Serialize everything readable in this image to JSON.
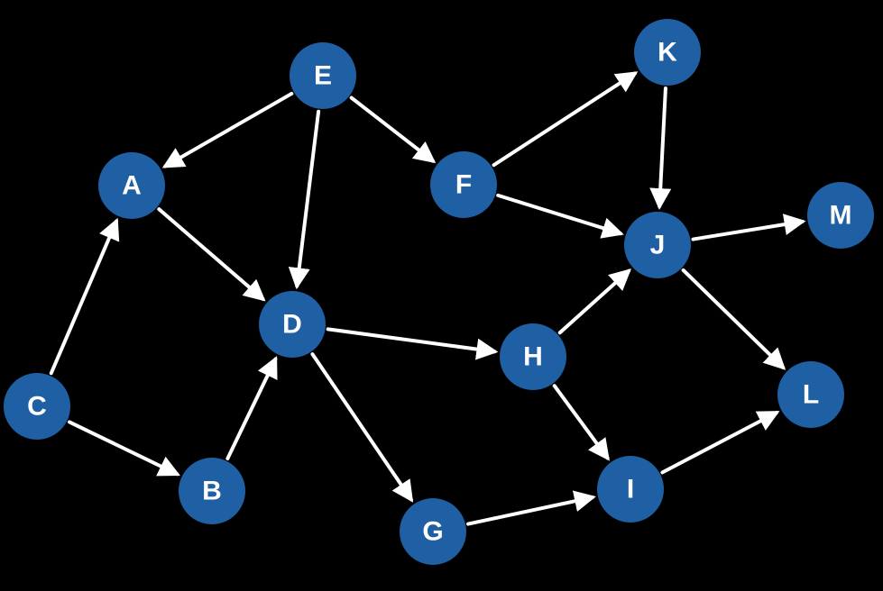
{
  "colors": {
    "background": "#000000",
    "node_fill": "#1f5fa3",
    "edge": "#ffffff",
    "label": "#ffffff"
  },
  "nodes": [
    {
      "id": "E",
      "label": "E"
    },
    {
      "id": "A",
      "label": "A"
    },
    {
      "id": "F",
      "label": "F"
    },
    {
      "id": "K",
      "label": "K"
    },
    {
      "id": "J",
      "label": "J"
    },
    {
      "id": "M",
      "label": "M"
    },
    {
      "id": "D",
      "label": "D"
    },
    {
      "id": "H",
      "label": "H"
    },
    {
      "id": "C",
      "label": "C"
    },
    {
      "id": "B",
      "label": "B"
    },
    {
      "id": "L",
      "label": "L"
    },
    {
      "id": "I",
      "label": "I"
    },
    {
      "id": "G",
      "label": "G"
    }
  ],
  "edges": [
    {
      "from": "E",
      "to": "A"
    },
    {
      "from": "E",
      "to": "D"
    },
    {
      "from": "E",
      "to": "F"
    },
    {
      "from": "F",
      "to": "K"
    },
    {
      "from": "F",
      "to": "J"
    },
    {
      "from": "K",
      "to": "J"
    },
    {
      "from": "J",
      "to": "M"
    },
    {
      "from": "J",
      "to": "L"
    },
    {
      "from": "A",
      "to": "D"
    },
    {
      "from": "C",
      "to": "A"
    },
    {
      "from": "C",
      "to": "B"
    },
    {
      "from": "B",
      "to": "D"
    },
    {
      "from": "D",
      "to": "H"
    },
    {
      "from": "D",
      "to": "G"
    },
    {
      "from": "H",
      "to": "J"
    },
    {
      "from": "H",
      "to": "I"
    },
    {
      "from": "G",
      "to": "I"
    },
    {
      "from": "I",
      "to": "L"
    }
  ]
}
